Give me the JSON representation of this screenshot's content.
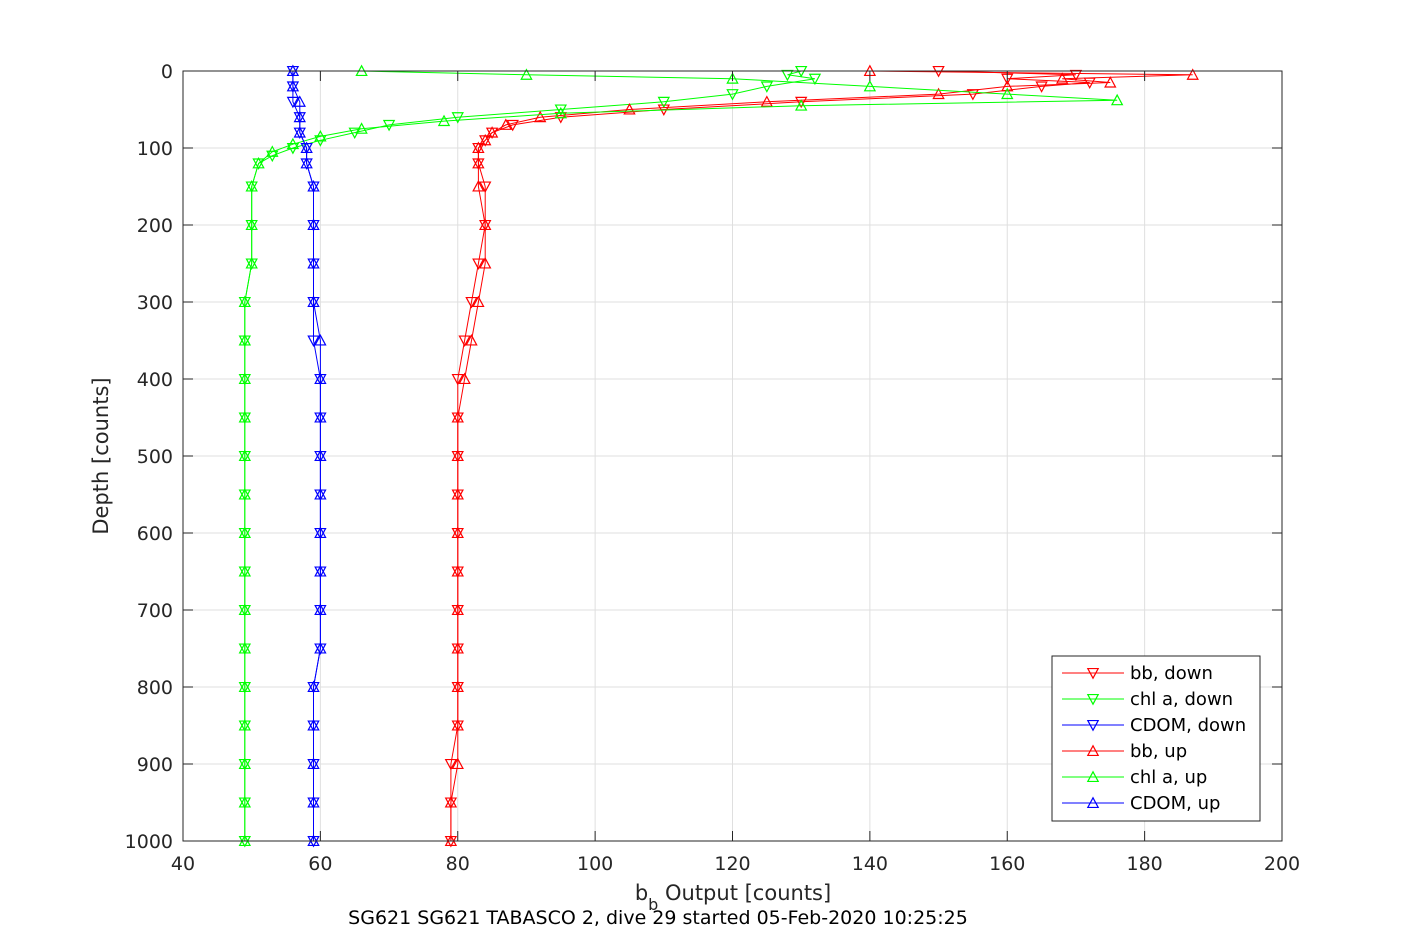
{
  "caption": "SG621 SG621 TABASCO 2, dive 29 started 05-Feb-2020 10:25:25",
  "chart_data": {
    "type": "line",
    "xlabel_main": "b",
    "xlabel_sub": "b",
    "xlabel_rest": " Output [counts]",
    "ylabel": "Depth [counts]",
    "xlim": [
      40,
      200
    ],
    "ylim": [
      0,
      1000
    ],
    "y_reversed": true,
    "xticks": [
      40,
      60,
      80,
      100,
      120,
      140,
      160,
      180,
      200
    ],
    "yticks": [
      0,
      100,
      200,
      300,
      400,
      500,
      600,
      700,
      800,
      900,
      1000
    ],
    "grid": true,
    "legend_position": "bottom-right",
    "series": [
      {
        "name": "bb, down",
        "color": "#ff0000",
        "marker": "triangle-down",
        "depth": [
          0,
          5,
          10,
          15,
          20,
          30,
          40,
          50,
          60,
          70,
          80,
          90,
          100,
          120,
          150,
          200,
          250,
          300,
          350,
          400,
          450,
          500,
          550,
          600,
          650,
          700,
          750,
          800,
          850,
          900,
          950,
          1000
        ],
        "value": [
          150,
          170,
          160,
          172,
          165,
          155,
          130,
          110,
          95,
          88,
          85,
          84,
          83,
          83,
          84,
          84,
          83,
          82,
          81,
          80,
          80,
          80,
          80,
          80,
          80,
          80,
          80,
          80,
          80,
          79,
          79,
          79
        ]
      },
      {
        "name": "chl a, down",
        "color": "#00ff00",
        "marker": "triangle-down",
        "depth": [
          0,
          5,
          10,
          20,
          30,
          40,
          50,
          60,
          70,
          80,
          90,
          100,
          110,
          120,
          150,
          200,
          250,
          300,
          350,
          400,
          450,
          500,
          550,
          600,
          650,
          700,
          750,
          800,
          850,
          900,
          950,
          1000
        ],
        "value": [
          130,
          128,
          132,
          125,
          120,
          110,
          95,
          80,
          70,
          65,
          60,
          56,
          53,
          51,
          50,
          50,
          50,
          49,
          49,
          49,
          49,
          49,
          49,
          49,
          49,
          49,
          49,
          49,
          49,
          49,
          49,
          49
        ]
      },
      {
        "name": "CDOM, down",
        "color": "#0000ff",
        "marker": "triangle-down",
        "depth": [
          0,
          20,
          40,
          60,
          80,
          100,
          120,
          150,
          200,
          250,
          300,
          350,
          400,
          450,
          500,
          550,
          600,
          650,
          700,
          750,
          800,
          850,
          900,
          950,
          1000
        ],
        "value": [
          56,
          56,
          56,
          57,
          57,
          58,
          58,
          59,
          59,
          59,
          59,
          59,
          60,
          60,
          60,
          60,
          60,
          60,
          60,
          60,
          59,
          59,
          59,
          59,
          59
        ]
      },
      {
        "name": "bb, up",
        "color": "#ff0000",
        "marker": "triangle-up",
        "depth": [
          0,
          5,
          10,
          15,
          20,
          30,
          40,
          50,
          60,
          70,
          80,
          90,
          100,
          120,
          150,
          200,
          250,
          300,
          350,
          400,
          450,
          500,
          550,
          600,
          650,
          700,
          750,
          800,
          850,
          900,
          950,
          1000
        ],
        "value": [
          140,
          187,
          168,
          175,
          160,
          150,
          125,
          105,
          92,
          87,
          85,
          84,
          83,
          83,
          83,
          84,
          84,
          83,
          82,
          81,
          80,
          80,
          80,
          80,
          80,
          80,
          80,
          80,
          80,
          80,
          79,
          79
        ]
      },
      {
        "name": "chl a, up",
        "color": "#00ff00",
        "marker": "triangle-up",
        "depth": [
          0,
          5,
          10,
          20,
          30,
          38,
          45,
          55,
          65,
          75,
          85,
          95,
          105,
          120,
          150,
          200,
          250,
          300,
          350,
          400,
          450,
          500,
          550,
          600,
          650,
          700,
          750,
          800,
          850,
          900,
          950,
          1000
        ],
        "value": [
          66,
          90,
          120,
          140,
          160,
          176,
          130,
          95,
          78,
          66,
          60,
          56,
          53,
          51,
          50,
          50,
          50,
          49,
          49,
          49,
          49,
          49,
          49,
          49,
          49,
          49,
          49,
          49,
          49,
          49,
          49,
          49
        ]
      },
      {
        "name": "CDOM, up",
        "color": "#0000ff",
        "marker": "triangle-up",
        "depth": [
          0,
          20,
          40,
          60,
          80,
          100,
          120,
          150,
          200,
          250,
          300,
          350,
          400,
          450,
          500,
          550,
          600,
          650,
          700,
          750,
          800,
          850,
          900,
          950,
          1000
        ],
        "value": [
          56,
          56,
          57,
          57,
          57,
          58,
          58,
          59,
          59,
          59,
          59,
          60,
          60,
          60,
          60,
          60,
          60,
          60,
          60,
          60,
          59,
          59,
          59,
          59,
          59
        ]
      }
    ]
  }
}
